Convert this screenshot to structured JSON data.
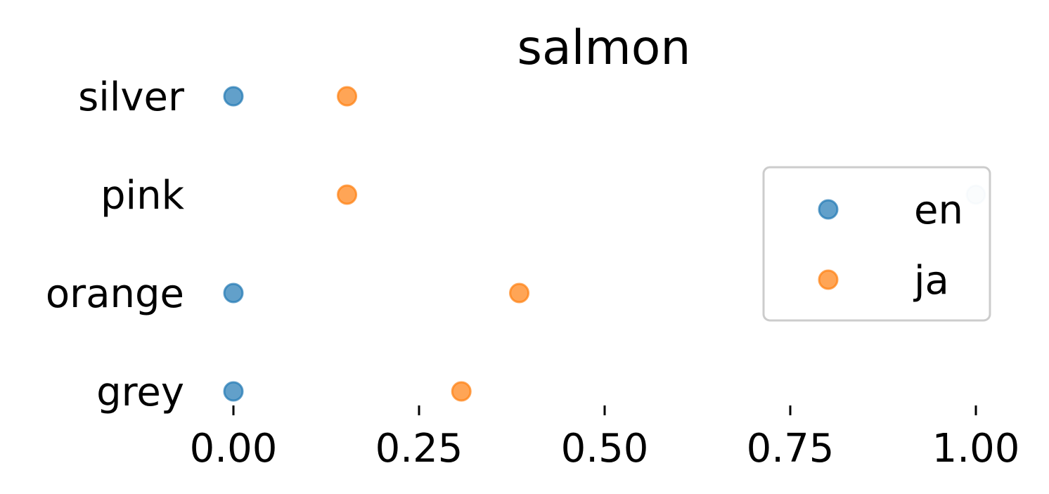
{
  "chart_data": {
    "type": "scatter",
    "title": "salmon",
    "xlabel": "",
    "ylabel": "",
    "categories": [
      "silver",
      "pink",
      "orange",
      "grey"
    ],
    "xlim": [
      0.0,
      1.0
    ],
    "xticks": [
      "0.00",
      "0.25",
      "0.50",
      "0.75",
      "1.00"
    ],
    "grid": false,
    "legend_position": "right",
    "series": [
      {
        "name": "en",
        "color": "#1f77b4",
        "values": [
          0.0,
          1.0,
          0.0,
          0.0
        ]
      },
      {
        "name": "ja",
        "color": "#ff7f0e",
        "values": [
          0.153,
          0.153,
          0.385,
          0.307
        ]
      }
    ]
  }
}
